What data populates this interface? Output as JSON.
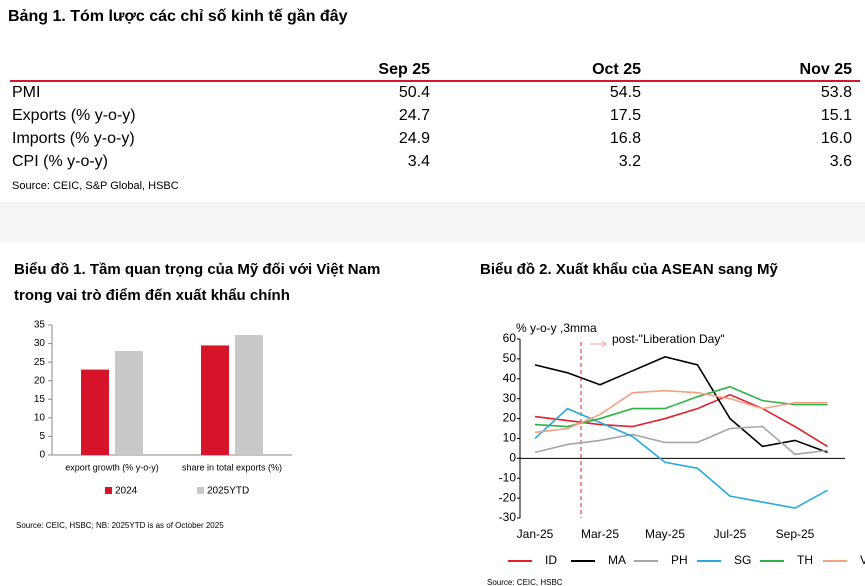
{
  "table": {
    "title": "Bảng 1. Tóm lược các chỉ số kinh tế gần đây",
    "columns": [
      "Sep 25",
      "Oct 25",
      "Nov 25"
    ],
    "rows": [
      {
        "label": "PMI",
        "values": [
          "50.4",
          "54.5",
          "53.8"
        ]
      },
      {
        "label": "Exports (% y-o-y)",
        "values": [
          "24.7",
          "17.5",
          "15.1"
        ]
      },
      {
        "label": "Imports (% y-o-y)",
        "values": [
          "24.9",
          "16.8",
          "16.0"
        ]
      },
      {
        "label": "CPI (% y-o-y)",
        "values": [
          "3.4",
          "3.2",
          "3.6"
        ]
      }
    ],
    "source": "Source: CEIC, S&P Global, HSBC"
  },
  "chart_data": [
    {
      "type": "bar",
      "title": [
        "Biểu đồ 1. Tầm quan trọng của Mỹ đối với Việt Nam",
        "trong vai trò điểm đến xuất khẩu chính"
      ],
      "categories": [
        "export growth (% y-o-y)",
        "share in total exports (%)"
      ],
      "series": [
        {
          "name": "2024",
          "color": "#d7142a",
          "values": [
            23,
            29.5
          ]
        },
        {
          "name": "2025YTD",
          "color": "#c8c8c8",
          "values": [
            28,
            32.3
          ]
        }
      ],
      "ylim": [
        0,
        35
      ],
      "yticks": [
        0,
        5,
        10,
        15,
        20,
        25,
        30,
        35
      ],
      "note": "Source: CEIC, HSBC; NB: 2025YTD is as of October 2025"
    },
    {
      "type": "line",
      "title": [
        "Biểu đồ 2. Xuất khẩu của ASEAN sang Mỹ"
      ],
      "y_label": "% y-o-y ,3mma",
      "annotation": "post-\"Liberation Day\"",
      "categories": [
        "Jan-25",
        null,
        "Mar-25",
        null,
        "May-25",
        null,
        "Jul-25",
        null,
        "Sep-25",
        null
      ],
      "series": [
        {
          "name": "ID",
          "color": "#e3202c",
          "values": [
            21,
            19,
            17,
            16,
            20,
            25,
            32,
            25,
            16,
            6
          ]
        },
        {
          "name": "MA",
          "color": "#000000",
          "values": [
            47,
            43,
            37,
            44,
            51,
            47,
            20,
            6,
            9,
            3
          ]
        },
        {
          "name": "PH",
          "color": "#a6a6a6",
          "values": [
            3,
            7,
            9,
            12,
            8,
            8,
            15,
            16,
            2,
            4
          ]
        },
        {
          "name": "SG",
          "color": "#2aa9e0",
          "values": [
            10,
            25,
            18,
            11,
            -2,
            -5,
            -19,
            -22,
            -25,
            -16
          ]
        },
        {
          "name": "TH",
          "color": "#2db34a",
          "values": [
            17,
            16,
            20,
            25,
            25,
            31,
            36,
            29,
            27,
            27
          ]
        },
        {
          "name": "VN",
          "color": "#f3a083",
          "values": [
            13,
            15,
            22,
            33,
            34,
            33,
            30,
            25,
            28,
            28
          ]
        }
      ],
      "ylim": [
        -30,
        60
      ],
      "yticks": [
        -30,
        -20,
        -10,
        0,
        10,
        20,
        30,
        40,
        50,
        60
      ],
      "note": "Source: CEIC, HSBC"
    }
  ]
}
